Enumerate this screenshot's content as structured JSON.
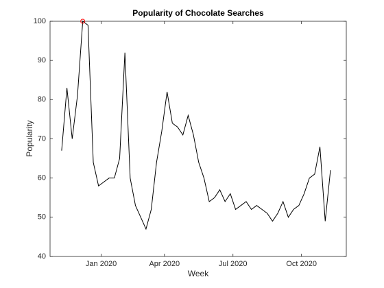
{
  "chart_data": {
    "type": "line",
    "title": "Popularity of Chocolate Searches",
    "x_label": "Week",
    "y_label": "Popularity",
    "x": [
      0,
      1,
      2,
      3,
      4,
      5,
      6,
      7,
      8,
      9,
      10,
      11,
      12,
      13,
      14,
      15,
      16,
      17,
      18,
      19,
      20,
      21,
      22,
      23,
      24,
      25,
      26,
      27,
      28,
      29,
      30,
      31,
      32,
      33,
      34,
      35,
      36,
      37,
      38,
      39,
      40,
      41,
      42,
      43,
      44,
      45,
      46,
      47,
      48,
      49,
      50,
      51
    ],
    "series": [
      {
        "name": "Popularity",
        "color": "#000000",
        "values": [
          67,
          83,
          70,
          81,
          100,
          99,
          64,
          58,
          59,
          60,
          60,
          65,
          92,
          60,
          53,
          50,
          47,
          52,
          64,
          72,
          82,
          74,
          73,
          71,
          76,
          71,
          64,
          60,
          54,
          55,
          57,
          54,
          56,
          52,
          53,
          54,
          52,
          53,
          52,
          51,
          49,
          51,
          54,
          50,
          52,
          53,
          56,
          60,
          61,
          68,
          49,
          62
        ]
      }
    ],
    "highlight": {
      "index": 4,
      "color": "#ff0000"
    },
    "xlim": [
      -2.2,
      54
    ],
    "xticks": [
      {
        "value": 7.5,
        "label": "Jan 2020"
      },
      {
        "value": 19.5,
        "label": "Apr 2020"
      },
      {
        "value": 32.5,
        "label": "Jul 2020"
      },
      {
        "value": 45.5,
        "label": "Oct 2020"
      }
    ],
    "ylim": [
      40,
      100
    ],
    "yticks": [
      40,
      50,
      60,
      70,
      80,
      90,
      100
    ],
    "grid": false
  }
}
